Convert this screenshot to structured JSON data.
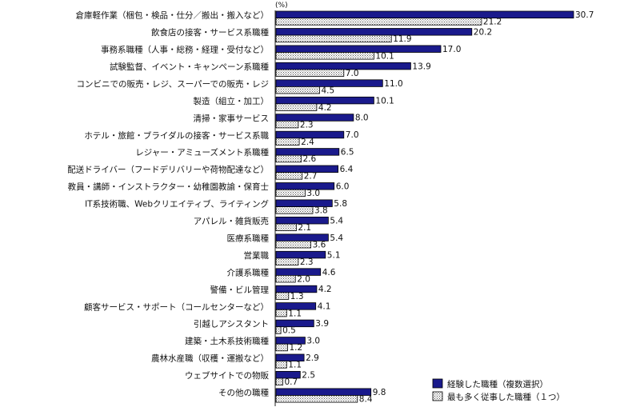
{
  "chart_data": {
    "type": "bar",
    "orientation": "horizontal",
    "unit": "(%)",
    "colors": {
      "series1": "#1a1a8c",
      "series2_pattern": "dotted",
      "axis": "#222222"
    },
    "xlim": [
      0,
      35
    ],
    "grid": false,
    "legend_position": "bottom-right",
    "categories": [
      "倉庫軽作業（梱包・検品・仕分／搬出・搬入など）",
      "飲食店の接客・サービス系職種",
      "事務系職種（人事・総務・経理・受付など）",
      "試験監督、イベント・キャンペーン系職種",
      "コンビニでの販売・レジ、スーパーでの販売・レジ",
      "製造（組立・加工）",
      "清掃・家事サービス",
      "ホテル・旅館・ブライダルの接客・サービス系職",
      "レジャー・アミューズメント系職種",
      "配送ドライバー（フードデリバリーや荷物配達など）",
      "教員・講師・インストラクター・幼稚園教諭・保育士",
      "IT系技術職、Webクリエイティブ、ライティング",
      "アパレル・雑貨販売",
      "医療系職種",
      "営業職",
      "介護系職種",
      "警備・ビル管理",
      "顧客サービス・サポート（コールセンターなど）",
      "引越しアシスタント",
      "建築・土木系技術職種",
      "農林水産職（収穫・運搬など）",
      "ウェブサイトでの物販",
      "その他の職種"
    ],
    "series": [
      {
        "name": "経験した職種（複数選択）",
        "values": [
          30.7,
          20.2,
          17.0,
          13.9,
          11.0,
          10.1,
          8.0,
          7.0,
          6.5,
          6.4,
          6.0,
          5.8,
          5.4,
          5.4,
          5.1,
          4.6,
          4.2,
          4.1,
          3.9,
          3.0,
          2.9,
          2.5,
          9.8
        ],
        "labels": [
          "30.7",
          "20.2",
          "17.0",
          "13.9",
          "11.0",
          "10.1",
          "8.0",
          "7.0",
          "6.5",
          "6.4",
          "6.0",
          "5.8",
          "5.4",
          "5.4",
          "5.1",
          "4.6",
          "4.2",
          "4.1",
          "3.9",
          "3.0",
          "2.9",
          "2.5",
          "9.8"
        ]
      },
      {
        "name": "最も多く従事した職種（１つ）",
        "values": [
          21.2,
          11.9,
          10.1,
          7.0,
          4.5,
          4.2,
          2.3,
          2.4,
          2.6,
          2.7,
          3.0,
          3.8,
          2.1,
          3.6,
          2.3,
          2.0,
          1.3,
          1.1,
          0.5,
          1.2,
          1.1,
          0.7,
          8.4
        ],
        "labels": [
          "21.2",
          "11.9",
          "10.1",
          "7.0",
          "4.5",
          "4.2",
          "2.3",
          "2.4",
          "2.6",
          "2.7",
          "3.0",
          "3.8",
          "2.1",
          "3.6",
          "2.3",
          "2.0",
          "1.3",
          "1.1",
          "0.5",
          "1.2",
          "1.1",
          "0.7",
          "8.4"
        ]
      }
    ]
  }
}
